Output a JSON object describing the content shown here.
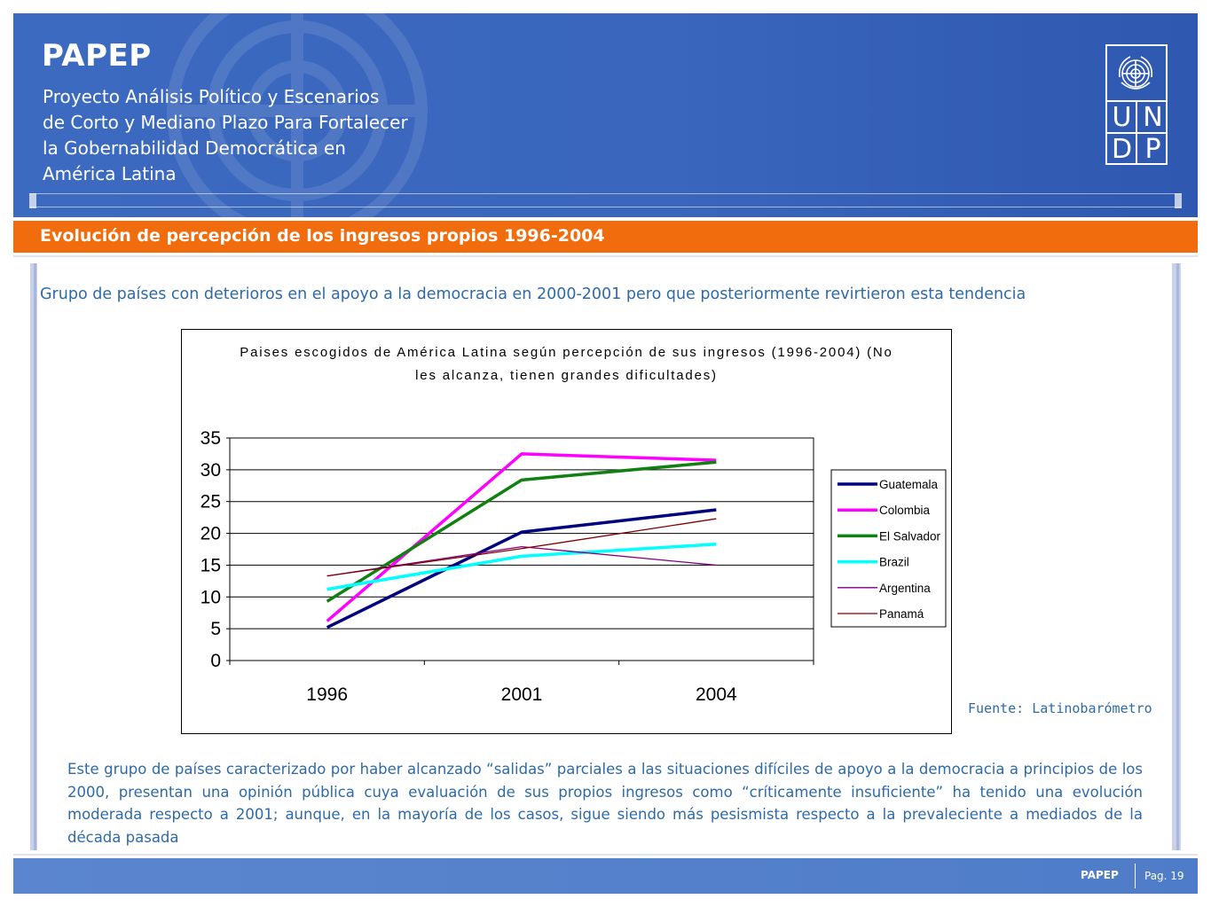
{
  "banner": {
    "title": "PAPEP",
    "subtitle_lines": [
      "Proyecto Análisis Político y Escenarios",
      "de Corto y Mediano Plazo Para Fortalecer",
      "la Gobernabilidad Democrática en",
      "América Latina"
    ],
    "logo_letters": [
      "U",
      "N",
      "D",
      "P"
    ],
    "emblem_icon": "un-emblem-icon"
  },
  "section_title": "Evolución de percepción de los ingresos propios 1996-2004",
  "subtitle": "Grupo de países con deterioros en el apoyo a la democracia en 2000-2001 pero que posteriormente revirtieron esta tendencia",
  "chart_data": {
    "type": "line",
    "title_lines": [
      "Paises escogidos de América Latina según percepción de sus ingresos (1996-2004) (No",
      "les alcanza, tienen grandes dificultades)"
    ],
    "categories": [
      "1996",
      "2001",
      "2004"
    ],
    "y_ticks": [
      "0",
      "5",
      "10",
      "15",
      "20",
      "25",
      "30",
      "35"
    ],
    "ylim": [
      0,
      35
    ],
    "grid": true,
    "legend_position": "right",
    "series": [
      {
        "name": "Guatemala",
        "values": [
          5.2,
          20.2,
          23.7
        ],
        "color": "#00007f",
        "width": 3.5
      },
      {
        "name": "Colombia",
        "values": [
          6.2,
          32.5,
          31.5
        ],
        "color": "#ff00ff",
        "width": 3.5
      },
      {
        "name": "El Salvador",
        "values": [
          9.3,
          28.4,
          31.2
        ],
        "color": "#108010",
        "width": 3.5
      },
      {
        "name": "Brazil",
        "values": [
          11.2,
          16.4,
          18.3
        ],
        "color": "#00ffff",
        "width": 3.5
      },
      {
        "name": "Argentina",
        "values": [
          13.3,
          17.9,
          15.0
        ],
        "color": "#800080",
        "width": 1.3
      },
      {
        "name": "Panamá",
        "values": [
          13.3,
          17.6,
          22.3
        ],
        "color": "#800000",
        "width": 1.3
      }
    ]
  },
  "source": "Fuente: Latinobarómetro",
  "body_text": "Este grupo de países caracterizado por haber alcanzado “salidas” parciales a las situaciones difíciles de apoyo a la democracia a principios de los 2000, presentan una opinión pública cuya evaluación de sus propios ingresos como “críticamente insuficiente” ha tenido una evolución moderada respecto a 2001; aunque, en la mayoría de los casos, sigue siendo más pesismista respecto a la prevaleciente  a mediados de la década pasada",
  "footer": {
    "brand": "PAPEP",
    "page": "Pag. 19"
  }
}
